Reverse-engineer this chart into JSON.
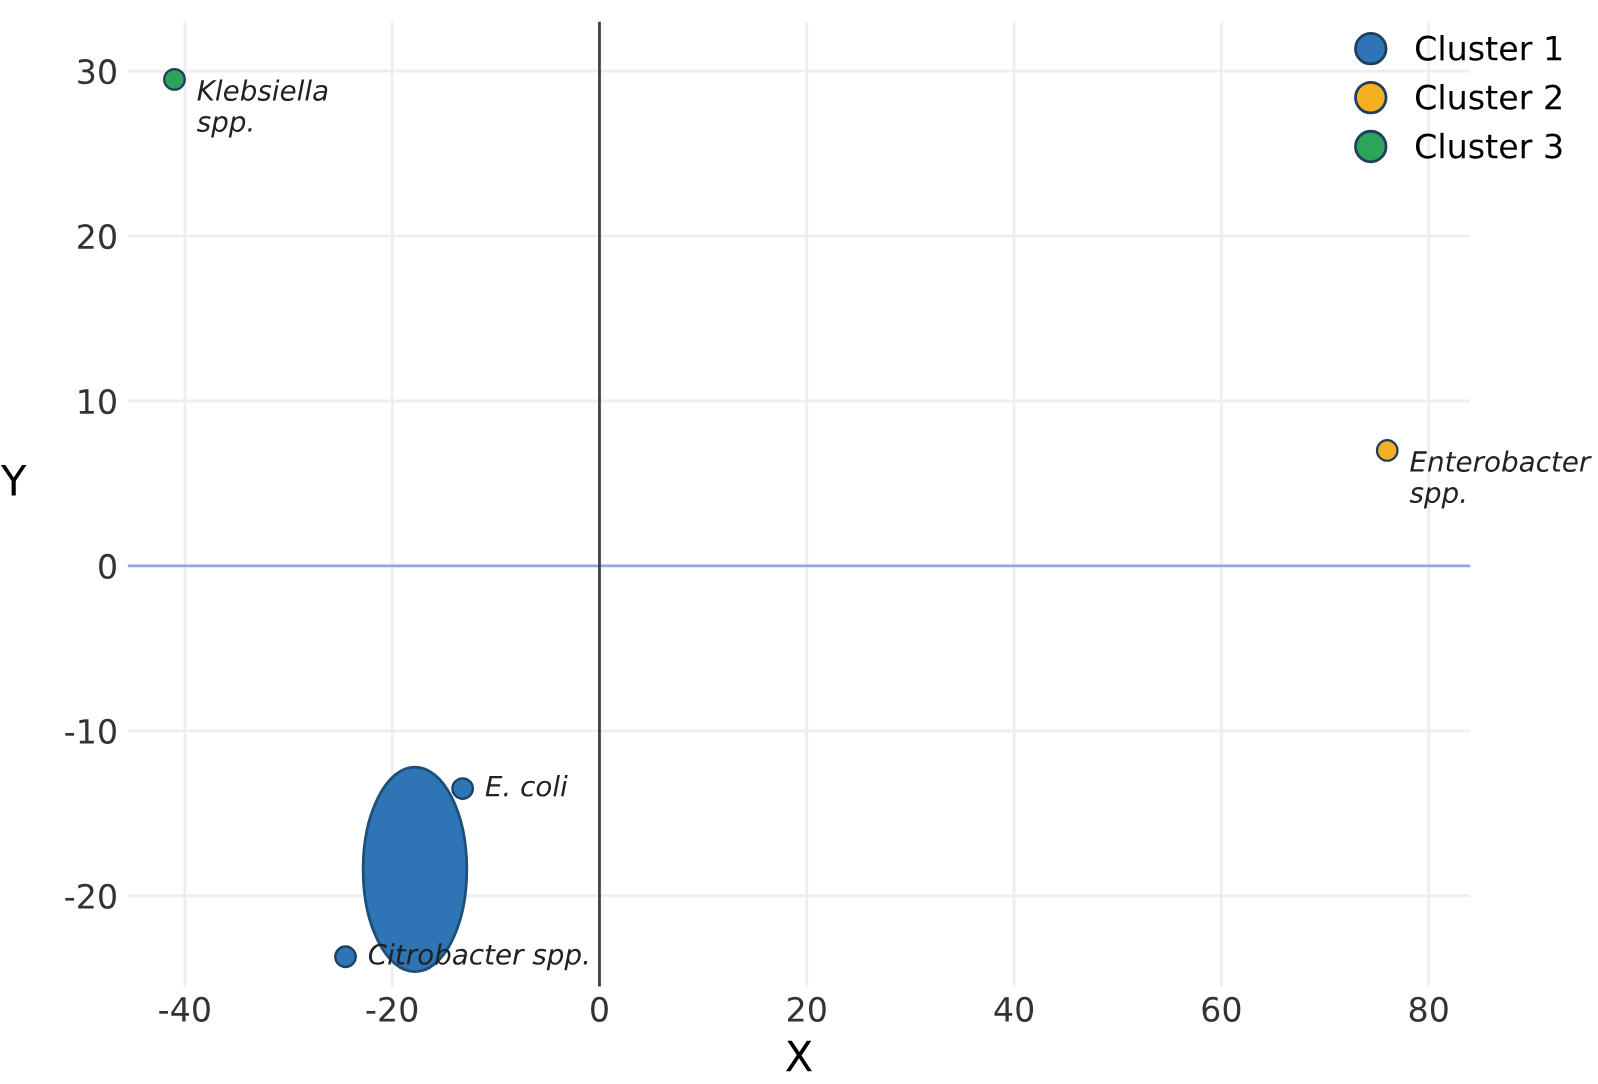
{
  "chart_data": {
    "type": "scatter",
    "xlabel": "X",
    "ylabel": "Y",
    "series": [
      {
        "name": "Cluster 1",
        "color": "#2e75b6",
        "x": [
          -13.2,
          -24.5
        ],
        "values": [
          -13.5,
          -23.7
        ]
      },
      {
        "name": "Cluster 2",
        "color": "#f5b021",
        "x": [
          76
        ],
        "values": [
          7
        ]
      },
      {
        "name": "Cluster 3",
        "color": "#2ca55a",
        "x": [
          -41
        ],
        "values": [
          29.5
        ]
      }
    ],
    "annotations": [
      {
        "text": "E. coli",
        "x": -13.2,
        "y": -13.5
      },
      {
        "text": "Citrobacter spp.",
        "x": -24.5,
        "y": -23.7
      },
      {
        "text": "Enterobacter\nspp.",
        "x": 76,
        "y": 7
      },
      {
        "text": "Klebsiella\nspp.",
        "x": -41,
        "y": 29.5
      }
    ],
    "ref_lines": [
      {
        "axis": "y",
        "value": 0,
        "color": "#8faadc"
      },
      {
        "axis": "x",
        "value": 0,
        "color": "#404040"
      }
    ],
    "xlim": [
      -45.5,
      84
    ],
    "ylim": [
      -25.5,
      33
    ],
    "xticks": [
      -40,
      -20,
      0,
      20,
      40,
      60,
      80
    ],
    "yticks": [
      -20,
      -10,
      0,
      10,
      20,
      30
    ],
    "grid": true,
    "legend": "top right"
  }
}
